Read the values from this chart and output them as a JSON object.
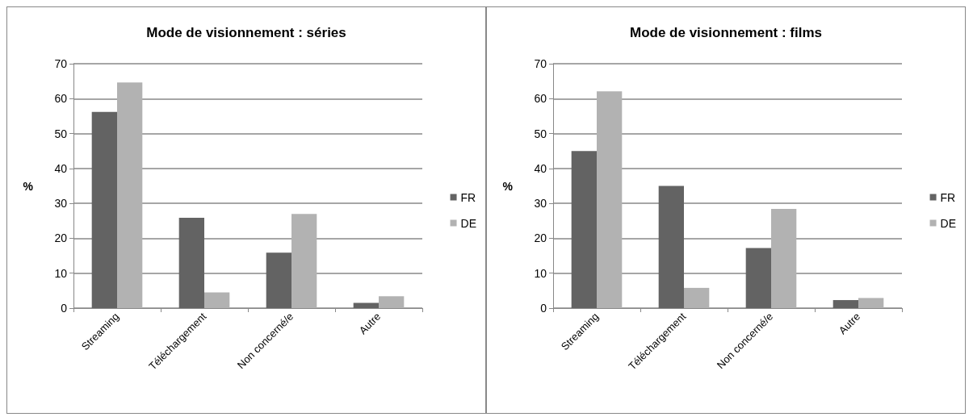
{
  "chart_data": [
    {
      "type": "bar",
      "title": "Mode de visionnement : séries",
      "ylabel": "%",
      "categories": [
        "Streaming",
        "Téléchargement",
        "Non concerné/e",
        "Autre"
      ],
      "series": [
        {
          "name": "FR",
          "color": "#636363",
          "values": [
            56.2,
            25.9,
            15.9,
            1.5
          ]
        },
        {
          "name": "DE",
          "color": "#b2b2b2",
          "values": [
            64.6,
            4.5,
            27.0,
            3.4
          ]
        }
      ],
      "ylim": [
        0,
        70
      ],
      "yticks": [
        0,
        10,
        20,
        30,
        40,
        50,
        60,
        70
      ],
      "grid": "y",
      "legend": "right"
    },
    {
      "type": "bar",
      "title": "Mode de visionnement : films",
      "ylabel": "%",
      "categories": [
        "Streaming",
        "Téléchargement",
        "Non concerné/e",
        "Autre"
      ],
      "series": [
        {
          "name": "FR",
          "color": "#636363",
          "values": [
            45.0,
            35.0,
            17.2,
            2.3
          ]
        },
        {
          "name": "DE",
          "color": "#b2b2b2",
          "values": [
            62.1,
            5.8,
            28.4,
            2.9
          ]
        }
      ],
      "ylim": [
        0,
        70
      ],
      "yticks": [
        0,
        10,
        20,
        30,
        40,
        50,
        60,
        70
      ],
      "grid": "y",
      "legend": "right"
    }
  ]
}
